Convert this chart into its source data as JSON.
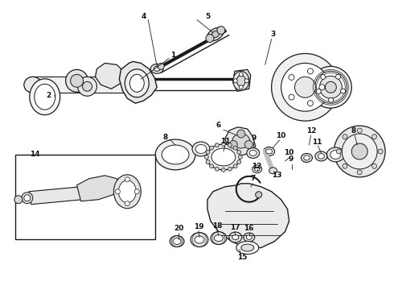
{
  "bg_color": "#ffffff",
  "line_color": "#1a1a1a",
  "label_color": "#111111",
  "fig_width": 4.9,
  "fig_height": 3.6,
  "dpi": 100
}
